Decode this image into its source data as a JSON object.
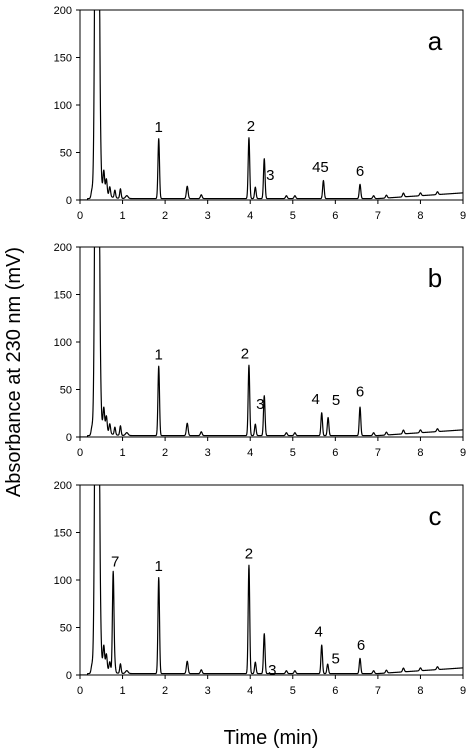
{
  "chart_data": {
    "type": "line",
    "ylabel": "Absorbance at 230 nm (mV)",
    "xlabel": "Time (min)",
    "x_ticks": [
      "0",
      "1",
      "2",
      "3",
      "4",
      "5",
      "6",
      "7",
      "8",
      "9"
    ],
    "y_ticks": [
      "0",
      "50",
      "100",
      "150",
      "200"
    ],
    "xlim": [
      0,
      9
    ],
    "ylim": [
      0,
      200
    ],
    "grid": false,
    "panels": [
      {
        "tag": "a",
        "peaks": [
          {
            "label": "1",
            "time": 1.85,
            "height": 63
          },
          {
            "label": "2",
            "time": 3.97,
            "height": 64
          },
          {
            "label": "3",
            "time": 4.33,
            "height": 42
          },
          {
            "label": "45",
            "time": 5.72,
            "height": 19
          },
          {
            "label": "6",
            "time": 6.58,
            "height": 15
          }
        ]
      },
      {
        "tag": "b",
        "peaks": [
          {
            "label": "1",
            "time": 1.85,
            "height": 73
          },
          {
            "label": "2",
            "time": 3.97,
            "height": 74
          },
          {
            "label": "3",
            "time": 4.33,
            "height": 42
          },
          {
            "label": "4",
            "time": 5.68,
            "height": 24
          },
          {
            "label": "5",
            "time": 5.83,
            "height": 19
          },
          {
            "label": "6",
            "time": 6.58,
            "height": 30
          }
        ]
      },
      {
        "tag": "c",
        "peaks": [
          {
            "label": "7",
            "time": 0.78,
            "height": 106
          },
          {
            "label": "1",
            "time": 1.85,
            "height": 101
          },
          {
            "label": "2",
            "time": 3.97,
            "height": 114
          },
          {
            "label": "3",
            "time": 4.33,
            "height": 42
          },
          {
            "label": "4",
            "time": 5.68,
            "height": 30
          },
          {
            "label": "5",
            "time": 5.82,
            "height": 10
          },
          {
            "label": "6",
            "time": 6.58,
            "height": 16
          }
        ]
      }
    ]
  }
}
